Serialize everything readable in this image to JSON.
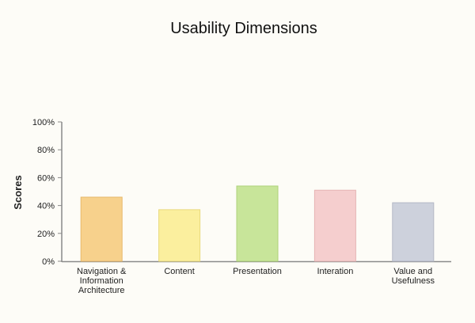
{
  "chart_data": {
    "type": "bar",
    "title": "Usability Dimensions",
    "xlabel": "",
    "ylabel": "Scores",
    "ylim": [
      0,
      100
    ],
    "y_ticks": [
      "0%",
      "20%",
      "40%",
      "60%",
      "80%",
      "100%"
    ],
    "y_tick_values": [
      0,
      20,
      40,
      60,
      80,
      100
    ],
    "grid": false,
    "categories": [
      "Navigation & Information Architecture",
      "Content",
      "Presentation",
      "Interation",
      "Value and Usefulness"
    ],
    "category_lines": [
      [
        "Navigation &",
        "Information",
        "Architecture"
      ],
      [
        "Content"
      ],
      [
        "Presentation"
      ],
      [
        "Interation"
      ],
      [
        "Value and",
        "Usefulness"
      ]
    ],
    "values": [
      46,
      37,
      54,
      51,
      42
    ],
    "colors": [
      "#f7d18c",
      "#fbef9e",
      "#c8e59a",
      "#f5cece",
      "#cdd1dc"
    ],
    "bar_stroke_colors": [
      "#e7b86a",
      "#e9d97c",
      "#aed27b",
      "#e6b4b4",
      "#b4b8c6"
    ]
  }
}
